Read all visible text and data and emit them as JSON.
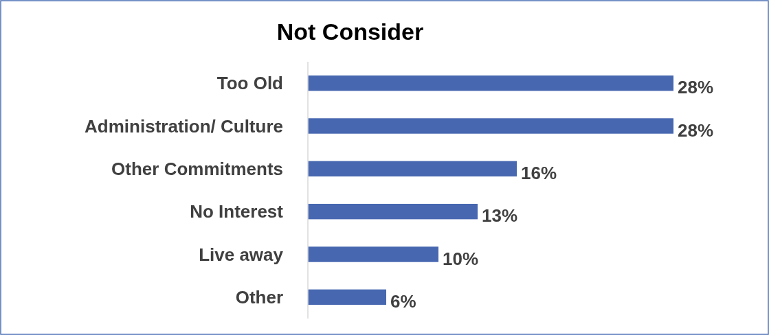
{
  "chart_data": {
    "type": "bar",
    "orientation": "horizontal",
    "title": "Not Consider",
    "categories": [
      "Too Old",
      "Administration/ Culture",
      "Other Commitments",
      "No Interest",
      "Live away",
      "Other"
    ],
    "values": [
      28,
      28,
      16,
      13,
      10,
      6
    ],
    "value_labels": [
      "28%",
      "28%",
      "16%",
      "13%",
      "10%",
      "6%"
    ],
    "color": "#4767b0"
  }
}
